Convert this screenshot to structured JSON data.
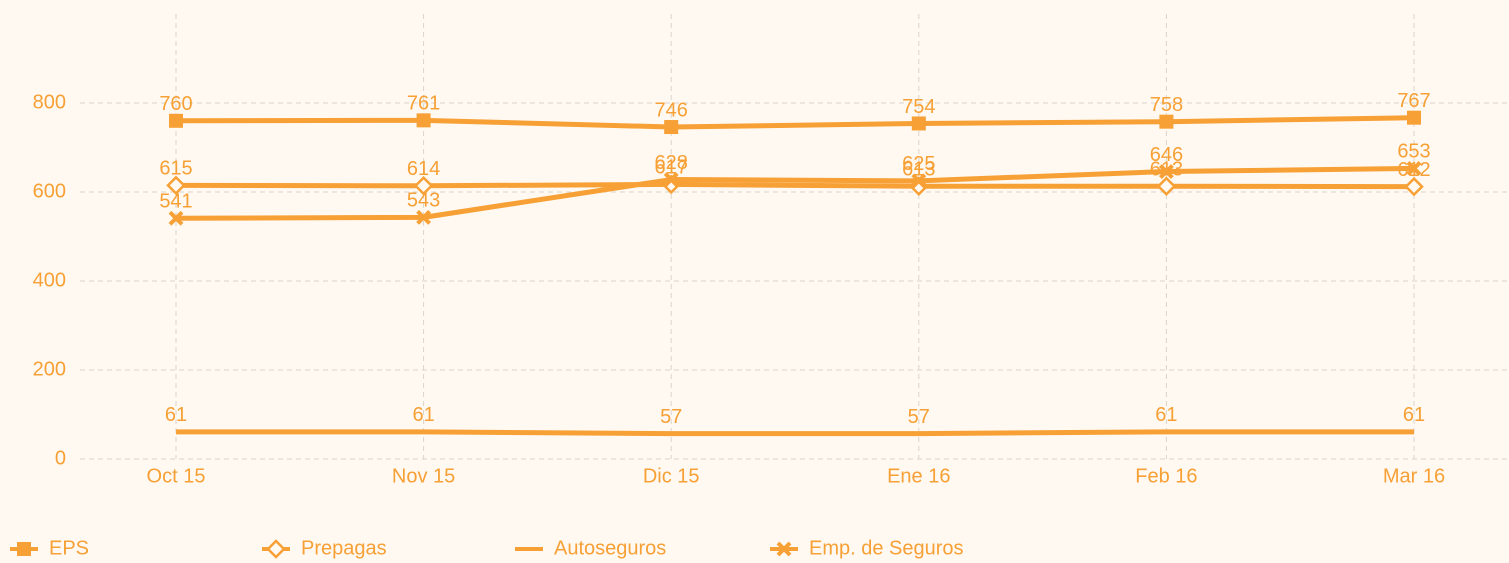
{
  "chart_data": {
    "type": "line",
    "categories": [
      "Oct 15",
      "Nov 15",
      "Dic 15",
      "Ene 16",
      "Feb 16",
      "Mar 16"
    ],
    "series": [
      {
        "name": "EPS",
        "color": "#f7a035",
        "marker": "square",
        "values": [
          760,
          761,
          746,
          754,
          758,
          767
        ]
      },
      {
        "name": "Prepagas",
        "color": "#f7a035",
        "marker": "diamond",
        "values": [
          615,
          614,
          617,
          613,
          613,
          612
        ]
      },
      {
        "name": "Autoseguros",
        "color": "#f7a035",
        "marker": "none",
        "values": [
          61,
          61,
          57,
          57,
          61,
          61
        ]
      },
      {
        "name": "Emp. de Seguros",
        "color": "#f7a035",
        "marker": "cross",
        "values": [
          541,
          543,
          628,
          625,
          646,
          653
        ]
      }
    ],
    "ylim": [
      0,
      1000
    ],
    "yticks": [
      0,
      200,
      400,
      600,
      800
    ],
    "grid": true,
    "legend": "bottom"
  }
}
